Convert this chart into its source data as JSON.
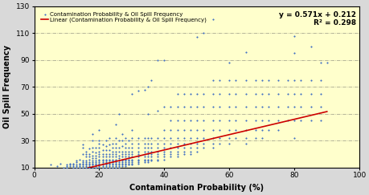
{
  "title": "",
  "xlabel": "Contamination Probability (%)",
  "ylabel": "Oil Spill Frequency",
  "xlim": [
    0,
    100
  ],
  "ylim": [
    10,
    130
  ],
  "yticks": [
    10,
    30,
    50,
    70,
    90,
    110,
    130
  ],
  "xticks": [
    0,
    20,
    40,
    60,
    80,
    100
  ],
  "plot_background_color": "#FFFFCC",
  "figure_background_color": "#E8E8E8",
  "scatter_color": "#4472C4",
  "line_color": "#CC0000",
  "equation_text": "y = 0.571x + 0.212",
  "r2_text": "R² = 0.298",
  "legend_scatter": "Contamination Probability & Oil Spill Frequency",
  "legend_line": "Linear (Contamination Probability & Oil Spill Frequency)",
  "slope": 0.571,
  "intercept": 0.212,
  "line_x_start": 10,
  "line_x_end": 90,
  "scatter_points": [
    [
      5,
      12
    ],
    [
      7,
      11
    ],
    [
      8,
      13
    ],
    [
      9,
      10
    ],
    [
      10,
      11
    ],
    [
      10,
      12
    ],
    [
      10,
      10
    ],
    [
      11,
      13
    ],
    [
      11,
      12
    ],
    [
      11,
      11
    ],
    [
      12,
      10
    ],
    [
      12,
      11
    ],
    [
      12,
      12
    ],
    [
      12,
      13
    ],
    [
      13,
      10
    ],
    [
      13,
      11
    ],
    [
      13,
      12
    ],
    [
      13,
      14
    ],
    [
      13,
      15
    ],
    [
      14,
      10
    ],
    [
      14,
      11
    ],
    [
      14,
      12
    ],
    [
      14,
      13
    ],
    [
      14,
      16
    ],
    [
      15,
      10
    ],
    [
      15,
      11
    ],
    [
      15,
      12
    ],
    [
      15,
      13
    ],
    [
      15,
      14
    ],
    [
      15,
      15
    ],
    [
      15,
      20
    ],
    [
      15,
      25
    ],
    [
      15,
      27
    ],
    [
      16,
      10
    ],
    [
      16,
      11
    ],
    [
      16,
      12
    ],
    [
      16,
      13
    ],
    [
      16,
      14
    ],
    [
      16,
      15
    ],
    [
      16,
      18
    ],
    [
      16,
      20
    ],
    [
      16,
      22
    ],
    [
      17,
      10
    ],
    [
      17,
      11
    ],
    [
      17,
      12
    ],
    [
      17,
      13
    ],
    [
      17,
      14
    ],
    [
      17,
      16
    ],
    [
      17,
      18
    ],
    [
      17,
      20
    ],
    [
      17,
      24
    ],
    [
      18,
      10
    ],
    [
      18,
      11
    ],
    [
      18,
      12
    ],
    [
      18,
      13
    ],
    [
      18,
      14
    ],
    [
      18,
      15
    ],
    [
      18,
      17
    ],
    [
      18,
      19
    ],
    [
      18,
      22
    ],
    [
      18,
      25
    ],
    [
      18,
      30
    ],
    [
      18,
      35
    ],
    [
      19,
      10
    ],
    [
      19,
      11
    ],
    [
      19,
      12
    ],
    [
      19,
      13
    ],
    [
      19,
      14
    ],
    [
      19,
      15
    ],
    [
      19,
      17
    ],
    [
      19,
      19
    ],
    [
      19,
      21
    ],
    [
      19,
      25
    ],
    [
      20,
      10
    ],
    [
      20,
      11
    ],
    [
      20,
      12
    ],
    [
      20,
      13
    ],
    [
      20,
      14
    ],
    [
      20,
      15
    ],
    [
      20,
      16
    ],
    [
      20,
      18
    ],
    [
      20,
      20
    ],
    [
      20,
      22
    ],
    [
      20,
      25
    ],
    [
      20,
      28
    ],
    [
      20,
      30
    ],
    [
      20,
      38
    ],
    [
      21,
      10
    ],
    [
      21,
      11
    ],
    [
      21,
      12
    ],
    [
      21,
      13
    ],
    [
      21,
      14
    ],
    [
      21,
      15
    ],
    [
      21,
      16
    ],
    [
      21,
      18
    ],
    [
      21,
      20
    ],
    [
      21,
      23
    ],
    [
      21,
      27
    ],
    [
      22,
      10
    ],
    [
      22,
      11
    ],
    [
      22,
      12
    ],
    [
      22,
      13
    ],
    [
      22,
      14
    ],
    [
      22,
      15
    ],
    [
      22,
      16
    ],
    [
      22,
      18
    ],
    [
      22,
      20
    ],
    [
      22,
      23
    ],
    [
      22,
      26
    ],
    [
      22,
      30
    ],
    [
      23,
      10
    ],
    [
      23,
      11
    ],
    [
      23,
      12
    ],
    [
      23,
      13
    ],
    [
      23,
      14
    ],
    [
      23,
      15
    ],
    [
      23,
      16
    ],
    [
      23,
      18
    ],
    [
      23,
      20
    ],
    [
      23,
      23
    ],
    [
      23,
      27
    ],
    [
      23,
      32
    ],
    [
      24,
      10
    ],
    [
      24,
      11
    ],
    [
      24,
      12
    ],
    [
      24,
      13
    ],
    [
      24,
      14
    ],
    [
      24,
      15
    ],
    [
      24,
      16
    ],
    [
      24,
      18
    ],
    [
      24,
      20
    ],
    [
      24,
      22
    ],
    [
      24,
      25
    ],
    [
      24,
      28
    ],
    [
      25,
      10
    ],
    [
      25,
      11
    ],
    [
      25,
      12
    ],
    [
      25,
      13
    ],
    [
      25,
      14
    ],
    [
      25,
      15
    ],
    [
      25,
      16
    ],
    [
      25,
      18
    ],
    [
      25,
      20
    ],
    [
      25,
      22
    ],
    [
      25,
      25
    ],
    [
      25,
      28
    ],
    [
      25,
      32
    ],
    [
      25,
      42
    ],
    [
      26,
      10
    ],
    [
      26,
      11
    ],
    [
      26,
      12
    ],
    [
      26,
      13
    ],
    [
      26,
      14
    ],
    [
      26,
      15
    ],
    [
      26,
      17
    ],
    [
      26,
      19
    ],
    [
      26,
      22
    ],
    [
      26,
      25
    ],
    [
      26,
      30
    ],
    [
      26,
      50
    ],
    [
      27,
      11
    ],
    [
      27,
      12
    ],
    [
      27,
      13
    ],
    [
      27,
      14
    ],
    [
      27,
      15
    ],
    [
      27,
      16
    ],
    [
      27,
      18
    ],
    [
      27,
      20
    ],
    [
      27,
      22
    ],
    [
      27,
      26
    ],
    [
      27,
      30
    ],
    [
      27,
      35
    ],
    [
      28,
      11
    ],
    [
      28,
      12
    ],
    [
      28,
      13
    ],
    [
      28,
      14
    ],
    [
      28,
      15
    ],
    [
      28,
      16
    ],
    [
      28,
      18
    ],
    [
      28,
      20
    ],
    [
      28,
      22
    ],
    [
      28,
      25
    ],
    [
      28,
      28
    ],
    [
      28,
      32
    ],
    [
      29,
      12
    ],
    [
      29,
      13
    ],
    [
      29,
      14
    ],
    [
      29,
      15
    ],
    [
      29,
      16
    ],
    [
      29,
      18
    ],
    [
      29,
      20
    ],
    [
      29,
      22
    ],
    [
      29,
      25
    ],
    [
      29,
      30
    ],
    [
      30,
      12
    ],
    [
      30,
      13
    ],
    [
      30,
      14
    ],
    [
      30,
      15
    ],
    [
      30,
      16
    ],
    [
      30,
      18
    ],
    [
      30,
      20
    ],
    [
      30,
      22
    ],
    [
      30,
      25
    ],
    [
      30,
      28
    ],
    [
      30,
      32
    ],
    [
      30,
      38
    ],
    [
      30,
      65
    ],
    [
      32,
      13
    ],
    [
      32,
      14
    ],
    [
      32,
      15
    ],
    [
      32,
      16
    ],
    [
      32,
      18
    ],
    [
      32,
      20
    ],
    [
      32,
      22
    ],
    [
      32,
      25
    ],
    [
      32,
      28
    ],
    [
      32,
      32
    ],
    [
      32,
      67
    ],
    [
      34,
      14
    ],
    [
      34,
      15
    ],
    [
      34,
      16
    ],
    [
      34,
      18
    ],
    [
      34,
      20
    ],
    [
      34,
      22
    ],
    [
      34,
      25
    ],
    [
      34,
      28
    ],
    [
      34,
      32
    ],
    [
      34,
      68
    ],
    [
      35,
      14
    ],
    [
      35,
      15
    ],
    [
      35,
      16
    ],
    [
      35,
      18
    ],
    [
      35,
      20
    ],
    [
      35,
      22
    ],
    [
      35,
      25
    ],
    [
      35,
      28
    ],
    [
      35,
      32
    ],
    [
      35,
      50
    ],
    [
      35,
      70
    ],
    [
      36,
      15
    ],
    [
      36,
      16
    ],
    [
      36,
      18
    ],
    [
      36,
      20
    ],
    [
      36,
      22
    ],
    [
      36,
      25
    ],
    [
      36,
      28
    ],
    [
      36,
      32
    ],
    [
      36,
      75
    ],
    [
      38,
      15
    ],
    [
      38,
      16
    ],
    [
      38,
      18
    ],
    [
      38,
      20
    ],
    [
      38,
      22
    ],
    [
      38,
      25
    ],
    [
      38,
      28
    ],
    [
      38,
      32
    ],
    [
      38,
      52
    ],
    [
      38,
      90
    ],
    [
      40,
      16
    ],
    [
      40,
      18
    ],
    [
      40,
      20
    ],
    [
      40,
      22
    ],
    [
      40,
      25
    ],
    [
      40,
      28
    ],
    [
      40,
      32
    ],
    [
      40,
      38
    ],
    [
      40,
      55
    ],
    [
      40,
      90
    ],
    [
      42,
      18
    ],
    [
      42,
      20
    ],
    [
      42,
      22
    ],
    [
      42,
      25
    ],
    [
      42,
      28
    ],
    [
      42,
      32
    ],
    [
      42,
      38
    ],
    [
      42,
      45
    ],
    [
      42,
      55
    ],
    [
      44,
      18
    ],
    [
      44,
      20
    ],
    [
      44,
      22
    ],
    [
      44,
      25
    ],
    [
      44,
      28
    ],
    [
      44,
      32
    ],
    [
      44,
      38
    ],
    [
      44,
      45
    ],
    [
      44,
      55
    ],
    [
      44,
      65
    ],
    [
      46,
      20
    ],
    [
      46,
      22
    ],
    [
      46,
      25
    ],
    [
      46,
      28
    ],
    [
      46,
      32
    ],
    [
      46,
      38
    ],
    [
      46,
      45
    ],
    [
      46,
      55
    ],
    [
      46,
      65
    ],
    [
      48,
      20
    ],
    [
      48,
      22
    ],
    [
      48,
      25
    ],
    [
      48,
      28
    ],
    [
      48,
      32
    ],
    [
      48,
      38
    ],
    [
      48,
      45
    ],
    [
      48,
      55
    ],
    [
      48,
      65
    ],
    [
      50,
      22
    ],
    [
      50,
      25
    ],
    [
      50,
      28
    ],
    [
      50,
      32
    ],
    [
      50,
      38
    ],
    [
      50,
      45
    ],
    [
      50,
      55
    ],
    [
      50,
      65
    ],
    [
      50,
      107
    ],
    [
      52,
      25
    ],
    [
      52,
      28
    ],
    [
      52,
      32
    ],
    [
      52,
      38
    ],
    [
      52,
      45
    ],
    [
      52,
      55
    ],
    [
      52,
      65
    ],
    [
      52,
      110
    ],
    [
      55,
      25
    ],
    [
      55,
      28
    ],
    [
      55,
      32
    ],
    [
      55,
      38
    ],
    [
      55,
      45
    ],
    [
      55,
      55
    ],
    [
      55,
      65
    ],
    [
      55,
      75
    ],
    [
      55,
      120
    ],
    [
      57,
      28
    ],
    [
      57,
      32
    ],
    [
      57,
      38
    ],
    [
      57,
      45
    ],
    [
      57,
      55
    ],
    [
      57,
      65
    ],
    [
      57,
      75
    ],
    [
      60,
      28
    ],
    [
      60,
      32
    ],
    [
      60,
      38
    ],
    [
      60,
      45
    ],
    [
      60,
      55
    ],
    [
      60,
      65
    ],
    [
      60,
      75
    ],
    [
      60,
      88
    ],
    [
      62,
      32
    ],
    [
      62,
      38
    ],
    [
      62,
      45
    ],
    [
      62,
      55
    ],
    [
      62,
      65
    ],
    [
      62,
      75
    ],
    [
      65,
      28
    ],
    [
      65,
      32
    ],
    [
      65,
      38
    ],
    [
      65,
      45
    ],
    [
      65,
      55
    ],
    [
      65,
      65
    ],
    [
      65,
      75
    ],
    [
      65,
      96
    ],
    [
      68,
      32
    ],
    [
      68,
      38
    ],
    [
      68,
      45
    ],
    [
      68,
      55
    ],
    [
      68,
      65
    ],
    [
      68,
      75
    ],
    [
      70,
      32
    ],
    [
      70,
      38
    ],
    [
      70,
      45
    ],
    [
      70,
      55
    ],
    [
      70,
      65
    ],
    [
      70,
      75
    ],
    [
      72,
      38
    ],
    [
      72,
      45
    ],
    [
      72,
      55
    ],
    [
      72,
      65
    ],
    [
      72,
      75
    ],
    [
      75,
      38
    ],
    [
      75,
      45
    ],
    [
      75,
      55
    ],
    [
      75,
      65
    ],
    [
      75,
      75
    ],
    [
      78,
      45
    ],
    [
      78,
      55
    ],
    [
      78,
      65
    ],
    [
      78,
      75
    ],
    [
      80,
      32
    ],
    [
      80,
      45
    ],
    [
      80,
      55
    ],
    [
      80,
      65
    ],
    [
      80,
      75
    ],
    [
      80,
      95
    ],
    [
      80,
      108
    ],
    [
      82,
      45
    ],
    [
      82,
      55
    ],
    [
      82,
      65
    ],
    [
      82,
      75
    ],
    [
      85,
      45
    ],
    [
      85,
      55
    ],
    [
      85,
      65
    ],
    [
      85,
      75
    ],
    [
      85,
      100
    ],
    [
      88,
      45
    ],
    [
      88,
      55
    ],
    [
      88,
      65
    ],
    [
      88,
      75
    ],
    [
      88,
      88
    ],
    [
      90,
      88
    ]
  ]
}
